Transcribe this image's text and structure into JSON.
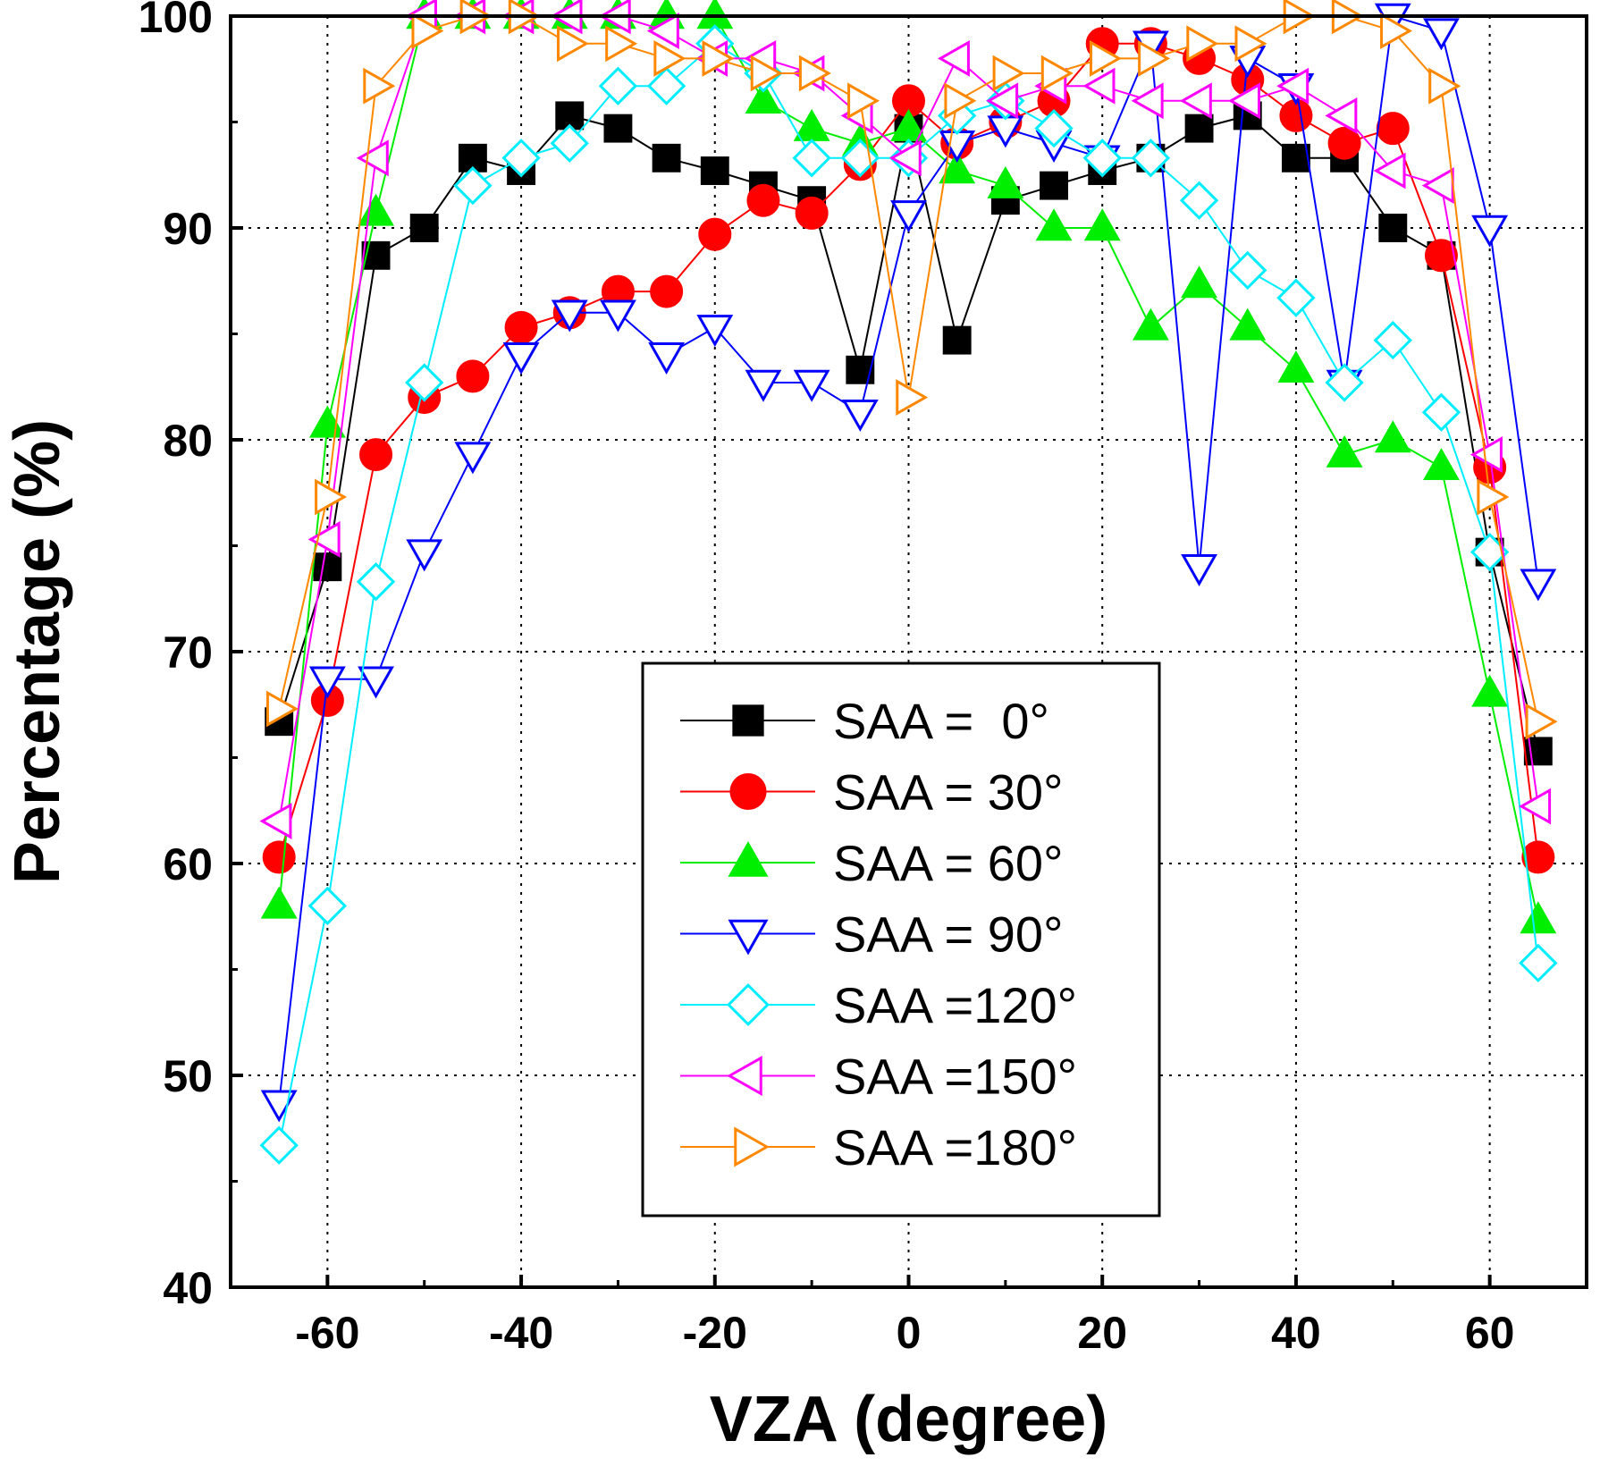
{
  "chart_data": {
    "type": "line",
    "title": "",
    "xlabel": "VZA (degree)",
    "ylabel": "Percentage (%)",
    "xlim": [
      -70,
      70
    ],
    "ylim": [
      40,
      100
    ],
    "x_ticks": [
      -60,
      -40,
      -20,
      0,
      20,
      40,
      60
    ],
    "y_ticks": [
      40,
      50,
      60,
      70,
      80,
      90,
      100
    ],
    "grid": true,
    "legend_position": "center-bottom",
    "x": [
      -65,
      -60,
      -55,
      -50,
      -45,
      -40,
      -35,
      -30,
      -25,
      -20,
      -15,
      -10,
      -5,
      0,
      5,
      10,
      15,
      20,
      25,
      30,
      35,
      40,
      45,
      50,
      55,
      60,
      65
    ],
    "series": [
      {
        "name": "SAA =  0°",
        "color": "#000000",
        "marker": "square-filled",
        "values": [
          66.7,
          74,
          88.7,
          90,
          93.3,
          92.7,
          95.3,
          94.7,
          93.3,
          92.7,
          92,
          91.3,
          83.3,
          94.7,
          84.7,
          91.3,
          92,
          92.7,
          93.3,
          94.7,
          95.3,
          93.3,
          93.3,
          90,
          88.7,
          74.7,
          65.3
        ]
      },
      {
        "name": "SAA = 30°",
        "color": "#ff0000",
        "marker": "circle-filled",
        "values": [
          60.3,
          67.7,
          79.3,
          82,
          83,
          85.3,
          86,
          87,
          87,
          89.7,
          91.3,
          90.7,
          93,
          96,
          94,
          95,
          96,
          98.7,
          98.7,
          98,
          97,
          95.3,
          94,
          94.7,
          88.7,
          78.7,
          60.3
        ]
      },
      {
        "name": "SAA = 60°",
        "color": "#00ee00",
        "marker": "triangle-up-filled",
        "values": [
          58,
          80.7,
          90.7,
          100,
          100,
          100,
          100,
          100,
          100,
          100,
          96,
          94.7,
          94,
          94.7,
          92.7,
          92,
          90,
          90,
          85.3,
          87.3,
          85.3,
          83.3,
          79.3,
          80,
          78.7,
          68,
          57.3
        ]
      },
      {
        "name": "SAA = 90°",
        "color": "#0000ff",
        "marker": "triangle-down-open",
        "values": [
          48.7,
          68.7,
          68.7,
          74.7,
          79.3,
          84,
          86,
          86,
          84,
          85.3,
          82.7,
          82.7,
          81.3,
          90.7,
          94,
          94.7,
          94,
          93.3,
          98.7,
          74,
          98,
          96.7,
          82.7,
          100,
          99.3,
          90,
          73.3
        ]
      },
      {
        "name": "SAA =120°",
        "color": "#00eeff",
        "marker": "diamond-open",
        "values": [
          46.7,
          58,
          73.3,
          82.7,
          92,
          93.3,
          94,
          96.7,
          96.7,
          98.7,
          97.3,
          93.3,
          93.3,
          93.3,
          95.3,
          96,
          94.7,
          93.3,
          93.3,
          91.3,
          88,
          86.7,
          82.7,
          84.7,
          81.3,
          74.7,
          55.3
        ]
      },
      {
        "name": "SAA =150°",
        "color": "#ff00ff",
        "marker": "triangle-left-open",
        "values": [
          62,
          75.3,
          93.3,
          100,
          100,
          100,
          100,
          100,
          99.3,
          98,
          98,
          97.3,
          95.3,
          93.3,
          98,
          96,
          96.7,
          96.7,
          96,
          96,
          96,
          96.7,
          95.3,
          92.7,
          92,
          79.3,
          62.7
        ]
      },
      {
        "name": "SAA =180°",
        "color": "#ff8800",
        "marker": "triangle-right-open",
        "values": [
          67.3,
          77.3,
          96.7,
          99.3,
          100,
          100,
          98.7,
          98.7,
          98,
          98,
          97.3,
          97.3,
          96,
          82,
          96,
          97.3,
          97.3,
          98,
          98,
          98.7,
          98.7,
          100,
          100,
          99.3,
          96.7,
          77.3,
          66.7
        ]
      }
    ]
  }
}
